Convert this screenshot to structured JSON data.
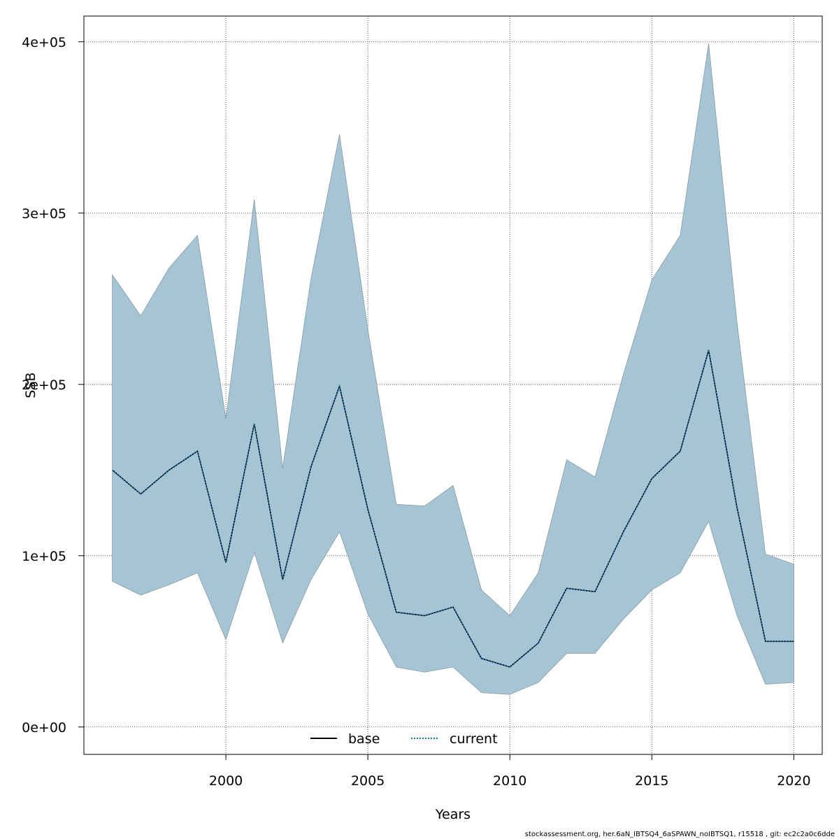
{
  "chart_data": {
    "type": "area",
    "title": "",
    "xlabel": "Years",
    "ylabel": "SSB",
    "x": [
      1996,
      1997,
      1998,
      1999,
      2000,
      2001,
      2002,
      2003,
      2004,
      2005,
      2006,
      2007,
      2008,
      2009,
      2010,
      2011,
      2012,
      2013,
      2014,
      2015,
      2016,
      2017,
      2018,
      2019,
      2020
    ],
    "xlim": [
      1995,
      2021
    ],
    "ylim": [
      -16000,
      415000
    ],
    "xticks": [
      2000,
      2005,
      2010,
      2015,
      2020
    ],
    "yticks": [
      0,
      100000,
      200000,
      300000,
      400000
    ],
    "xtick_labels": [
      "2000",
      "2005",
      "2010",
      "2015",
      "2020"
    ],
    "ytick_labels": [
      "0e+00",
      "1e+05",
      "2e+05",
      "3e+05",
      "4e+05"
    ],
    "grid": true,
    "legend_position": "bottom",
    "band": {
      "fill": "#a5c4d4",
      "upper": [
        264000,
        240000,
        268000,
        287000,
        180000,
        308000,
        151000,
        262000,
        346000,
        232000,
        130000,
        129000,
        141000,
        80000,
        65000,
        90000,
        156000,
        146000,
        206000,
        261000,
        287000,
        399000,
        236000,
        101000,
        95000
      ],
      "lower": [
        85000,
        77000,
        83000,
        90000,
        51000,
        102000,
        49000,
        86000,
        114000,
        66000,
        35000,
        32000,
        35000,
        20000,
        19000,
        26000,
        43000,
        43000,
        63000,
        80000,
        90000,
        120000,
        65000,
        25000,
        26000
      ]
    },
    "series": [
      {
        "name": "base",
        "style": "solid",
        "color": "#000000",
        "values": [
          150000,
          136000,
          150000,
          161000,
          96000,
          177000,
          86000,
          152000,
          199000,
          127000,
          67000,
          65000,
          70000,
          40000,
          35000,
          49000,
          81000,
          79000,
          114000,
          145000,
          161000,
          220000,
          128000,
          50000,
          50000
        ]
      },
      {
        "name": "current",
        "style": "dotted",
        "color": "#1f77b4",
        "values": [
          150000,
          136000,
          150000,
          161000,
          96000,
          177000,
          86000,
          152000,
          199000,
          127000,
          67000,
          65000,
          70000,
          40000,
          35000,
          49000,
          81000,
          79000,
          114000,
          145000,
          161000,
          220000,
          128000,
          50000,
          50000
        ]
      }
    ]
  },
  "footer": "stockassessment.org, her.6aN_IBTSQ4_6aSPAWN_noIBTSQ1, r15518 , git: ec2c2a0c6dde"
}
